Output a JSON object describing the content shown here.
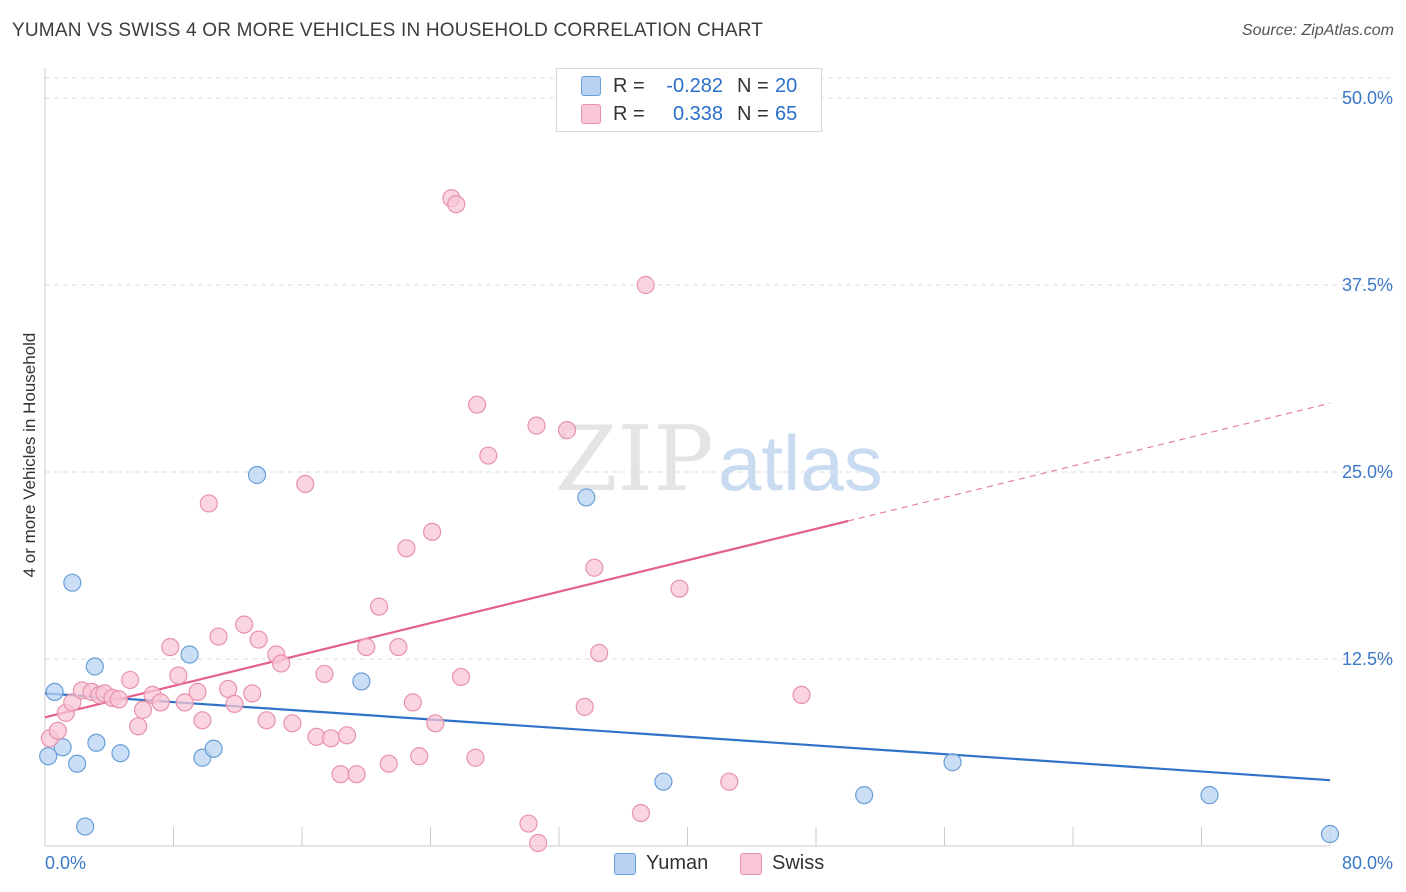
{
  "title": "YUMAN VS SWISS 4 OR MORE VEHICLES IN HOUSEHOLD CORRELATION CHART",
  "source": "Source: ZipAtlas.com",
  "watermark": {
    "zip": "ZIP",
    "atlas": "atlas"
  },
  "legend": {
    "rows": [
      {
        "r_label": "R =",
        "r_value": "-0.282",
        "n_label": "N =",
        "n_value": "20"
      },
      {
        "r_label": "R =",
        "r_value": "0.338",
        "n_label": "N =",
        "n_value": "65"
      }
    ]
  },
  "bottom_legend": {
    "yuman": "Yuman",
    "swiss": "Swiss"
  },
  "colors": {
    "yuman_fill": "#b8d3f1",
    "yuman_stroke": "#6a9fd8",
    "yuman_line": "#2f72c8",
    "swiss_fill": "#f8c6d5",
    "swiss_stroke": "#e892ad",
    "swiss_line": "#e2608a",
    "axis_label": "#3b78c8",
    "grid": "#dddddd"
  },
  "chart_data": {
    "type": "scatter",
    "title": "YUMAN VS SWISS 4 OR MORE VEHICLES IN HOUSEHOLD CORRELATION CHART",
    "xlabel": "",
    "ylabel": "4 or more Vehicles in Household",
    "xlim": [
      0,
      80
    ],
    "ylim": [
      0,
      50
    ],
    "x_tick_labels": [
      "0.0%",
      "80.0%"
    ],
    "y_ticks": [
      12.5,
      25.0,
      37.5,
      50.0
    ],
    "y_tick_labels": [
      "12.5%",
      "25.0%",
      "37.5%",
      "50.0%"
    ],
    "grid": true,
    "series": [
      {
        "name": "Yuman",
        "r": -0.282,
        "n": 20,
        "points": [
          [
            0.2,
            6.0
          ],
          [
            0.6,
            10.3
          ],
          [
            1.1,
            6.6
          ],
          [
            1.7,
            17.6
          ],
          [
            2.0,
            5.5
          ],
          [
            2.5,
            1.3
          ],
          [
            3.1,
            12.0
          ],
          [
            3.2,
            6.9
          ],
          [
            4.7,
            6.2
          ],
          [
            9.0,
            12.8
          ],
          [
            9.8,
            5.9
          ],
          [
            10.5,
            6.5
          ],
          [
            13.2,
            24.8
          ],
          [
            19.7,
            11.0
          ],
          [
            33.7,
            23.3
          ],
          [
            38.5,
            4.3
          ],
          [
            51.0,
            3.4
          ],
          [
            56.5,
            5.6
          ],
          [
            72.5,
            3.4
          ],
          [
            80.0,
            0.8
          ]
        ],
        "trend": {
          "x": [
            0,
            80
          ],
          "y": [
            10.2,
            4.4
          ],
          "dashed_from": null
        }
      },
      {
        "name": "Swiss",
        "r": 0.338,
        "n": 65,
        "points": [
          [
            0.3,
            7.2
          ],
          [
            0.8,
            7.7
          ],
          [
            1.3,
            8.9
          ],
          [
            1.7,
            9.6
          ],
          [
            2.3,
            10.4
          ],
          [
            2.9,
            10.3
          ],
          [
            3.4,
            10.1
          ],
          [
            3.7,
            10.2
          ],
          [
            4.2,
            9.9
          ],
          [
            4.6,
            9.8
          ],
          [
            5.3,
            11.1
          ],
          [
            5.8,
            8.0
          ],
          [
            6.1,
            9.1
          ],
          [
            6.7,
            10.1
          ],
          [
            7.2,
            9.6
          ],
          [
            7.8,
            13.3
          ],
          [
            8.3,
            11.4
          ],
          [
            8.7,
            9.6
          ],
          [
            9.5,
            10.3
          ],
          [
            9.8,
            8.4
          ],
          [
            10.2,
            22.9
          ],
          [
            10.8,
            14.0
          ],
          [
            11.4,
            10.5
          ],
          [
            11.8,
            9.5
          ],
          [
            12.4,
            14.8
          ],
          [
            12.9,
            10.2
          ],
          [
            13.3,
            13.8
          ],
          [
            13.8,
            8.4
          ],
          [
            14.4,
            12.8
          ],
          [
            14.7,
            12.2
          ],
          [
            15.4,
            8.2
          ],
          [
            16.2,
            24.2
          ],
          [
            16.9,
            7.3
          ],
          [
            17.4,
            11.5
          ],
          [
            17.8,
            7.2
          ],
          [
            18.4,
            4.8
          ],
          [
            18.8,
            7.4
          ],
          [
            19.4,
            4.8
          ],
          [
            20.0,
            13.3
          ],
          [
            20.8,
            16.0
          ],
          [
            21.4,
            5.5
          ],
          [
            22.0,
            13.3
          ],
          [
            22.5,
            19.9
          ],
          [
            22.9,
            9.6
          ],
          [
            23.3,
            6.0
          ],
          [
            24.1,
            21.0
          ],
          [
            24.3,
            8.2
          ],
          [
            25.3,
            43.3
          ],
          [
            25.6,
            42.9
          ],
          [
            25.9,
            11.3
          ],
          [
            26.8,
            5.9
          ],
          [
            26.9,
            29.5
          ],
          [
            27.6,
            26.1
          ],
          [
            30.1,
            1.5
          ],
          [
            30.6,
            28.1
          ],
          [
            32.5,
            27.8
          ],
          [
            33.6,
            9.3
          ],
          [
            34.2,
            18.6
          ],
          [
            34.5,
            12.9
          ],
          [
            37.1,
            2.2
          ],
          [
            37.4,
            37.5
          ],
          [
            39.5,
            17.2
          ],
          [
            42.6,
            4.3
          ],
          [
            47.1,
            10.1
          ],
          [
            30.7,
            0.2
          ]
        ],
        "trend": {
          "x": [
            0,
            80
          ],
          "y": [
            8.6,
            29.6
          ],
          "dashed_from": 50
        }
      }
    ]
  }
}
